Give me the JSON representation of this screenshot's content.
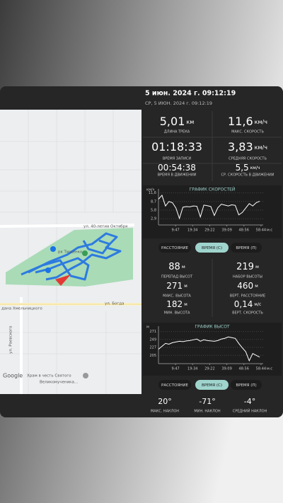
{
  "header": {
    "date": "5 июн. 2024 г. 09:12:19",
    "subtitle": "СР, 5 ИЮН. 2024 г. 09:12:19"
  },
  "map": {
    "labels": [
      "ул. 40-летия Октября",
      "рк Тищенко",
      "ул. Богда",
      "дана Хмельницкого",
      "ул. Раевского"
    ],
    "attribution": "Google",
    "place": [
      "Храм в честь Святого",
      "Великомученика..."
    ]
  },
  "track_stats": [
    {
      "value": "5,01",
      "unit": "км",
      "label": "ДЛИНА ТРЕКА"
    },
    {
      "value": "11,6",
      "unit": "км/ч",
      "label": "МАКС. СКОРОСТЬ"
    },
    {
      "value": "01:18:33",
      "label": "ВРЕМЯ ЗАПИСИ"
    },
    {
      "value": "3,83",
      "unit": "км/ч",
      "label": "СРЕДНЯЯ СКОРОСТЬ"
    },
    {
      "value": "00:54:38",
      "label": "ВРЕМЯ В ДВИЖЕНИИ"
    },
    {
      "value": "5,5",
      "unit": "км/ч",
      "label": "СР. СКОРОСТЬ В ДВИЖЕНИИ"
    }
  ],
  "speed_chart": {
    "type": "line",
    "title": "ГРАФИК СКОРОСТЕЙ",
    "unit": "км/ч",
    "x_unit": "м:с",
    "color": "#ffffff",
    "grid": true,
    "x": [
      0,
      120,
      240,
      360,
      480,
      600,
      720,
      840,
      960,
      1080,
      1200,
      1320,
      1440,
      1560,
      1680,
      1800,
      1920,
      2040,
      2160,
      2280,
      2400,
      2520,
      2640,
      2760,
      2880,
      3000,
      3120,
      3240,
      3360,
      3480
    ],
    "values": [
      9.5,
      10.8,
      7.2,
      8.7,
      8.3,
      6.5,
      3.0,
      6.8,
      7.0,
      6.9,
      7.2,
      7.1,
      3.5,
      7.5,
      7.3,
      7.0,
      4.0,
      6.6,
      7.8,
      7.5,
      7.2,
      7.6,
      7.4,
      4.2,
      5.0,
      6.5,
      8.0,
      7.2,
      8.3,
      8.8
    ],
    "xlim": [
      0,
      3600
    ],
    "ylim": [
      0.8,
      12
    ],
    "yticks": [
      {
        "value": 11.6,
        "label": "11,6"
      },
      {
        "value": 8.7,
        "label": "8,7"
      },
      {
        "value": 5.8,
        "label": "5,8"
      },
      {
        "value": 2.9,
        "label": "2,9"
      }
    ],
    "xticks": [
      {
        "value": 587,
        "label": "9:47"
      },
      {
        "value": 1174,
        "label": "19:34"
      },
      {
        "value": 1762,
        "label": "29:22"
      },
      {
        "value": 2349,
        "label": "39:09"
      },
      {
        "value": 2936,
        "label": "48:56"
      },
      {
        "value": 3524,
        "label": "58:44"
      }
    ]
  },
  "speed_tabs": {
    "items": [
      "РАССТОЯНИЕ",
      "ВРЕМЯ (С)",
      "ВРЕМЯ (П)"
    ],
    "selected": 1
  },
  "elevation_stats": [
    {
      "value": "88",
      "unit": "м",
      "label": "ПЕРЕПАД ВЫСОТ"
    },
    {
      "value": "219",
      "unit": "м",
      "label": "НАБОР ВЫСОТЫ"
    },
    {
      "value": "271",
      "unit": "м",
      "label": "МАКС. ВЫСОТА"
    },
    {
      "value": "460",
      "unit": "м",
      "label": "ВЕРТ. РАССТОЯНИЕ"
    },
    {
      "value": "182",
      "unit": "м",
      "label": "МИН. ВЫСОТА"
    },
    {
      "value": "0,14",
      "unit": "м/с",
      "label": "ВЕРТ. СКОРОСТЬ"
    }
  ],
  "elevation_chart": {
    "type": "line",
    "title": "ГРАФИК ВЫСОТ",
    "unit": "м",
    "x_unit": "м:с",
    "color": "#ffffff",
    "grid": true,
    "x": [
      0,
      120,
      240,
      360,
      480,
      600,
      720,
      840,
      960,
      1080,
      1200,
      1320,
      1440,
      1560,
      1680,
      1800,
      1920,
      2040,
      2160,
      2280,
      2400,
      2520,
      2640,
      2760,
      2880,
      3000,
      3120,
      3240,
      3360,
      3480
    ],
    "values": [
      222,
      230,
      238,
      236,
      240,
      242,
      244,
      243,
      245,
      246,
      248,
      250,
      244,
      248,
      246,
      245,
      244,
      246,
      250,
      252,
      256,
      254,
      252,
      238,
      226,
      215,
      190,
      210,
      205,
      200
    ],
    "xlim": [
      0,
      3600
    ],
    "ylim": [
      182,
      278
    ],
    "yticks": [
      271,
      249,
      227,
      205
    ],
    "xticks": [
      {
        "value": 587,
        "label": "9:47"
      },
      {
        "value": 1174,
        "label": "19:34"
      },
      {
        "value": 1762,
        "label": "29:22"
      },
      {
        "value": 2349,
        "label": "39:09"
      },
      {
        "value": 2936,
        "label": "48:56"
      },
      {
        "value": 3524,
        "label": "58:44"
      }
    ]
  },
  "elevation_tabs": {
    "items": [
      "РАССТОЯНИЕ",
      "ВРЕМЯ (С)",
      "ВРЕМЯ (П)"
    ],
    "selected": 1
  },
  "slope_stats": [
    {
      "value": "20°",
      "label": "МАКС. НАКЛОН"
    },
    {
      "value": "-71°",
      "label": "МИН. НАКЛОН"
    },
    {
      "value": "-4°",
      "label": "СРЕДНИЙ НАКЛОН"
    }
  ]
}
